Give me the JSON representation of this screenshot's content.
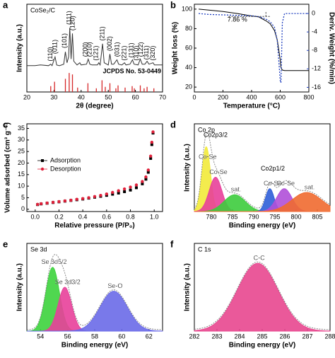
{
  "chart_data": [
    {
      "type": "line",
      "label": "a",
      "title": "CoSe₂/C",
      "xlabel": "2θ (degree)",
      "ylabel": "Intensity (a.u.)",
      "xlim": [
        20,
        70
      ],
      "xticks": [
        20,
        30,
        40,
        50,
        60,
        70
      ],
      "ylim": [
        0,
        120
      ],
      "color": "#333333",
      "x": [
        20,
        23,
        25,
        28,
        28.8,
        29.3,
        30.4,
        31,
        32,
        33.6,
        34.2,
        34.8,
        35.4,
        35.8,
        36.3,
        36.8,
        37.3,
        38.5,
        39.5,
        40,
        42,
        42.6,
        43.2,
        44,
        46,
        46.5,
        47,
        47.9,
        48.5,
        50,
        50.6,
        51.2,
        52,
        53.2,
        53.8,
        55,
        56,
        56.5,
        58,
        58.9,
        59.5,
        61,
        61.8,
        62.5,
        63.5,
        64.3,
        65,
        66.5,
        67,
        70
      ],
      "values": [
        36,
        36,
        37,
        36,
        38,
        36,
        48,
        37,
        36,
        38,
        55,
        40,
        48,
        88,
        45,
        80,
        42,
        37,
        40,
        37,
        38,
        45,
        38,
        37,
        37,
        40,
        37,
        66,
        40,
        37,
        52,
        38,
        38,
        44,
        38,
        37,
        40,
        37,
        38,
        44,
        38,
        37,
        45,
        38,
        38,
        42,
        38,
        40,
        37,
        37
      ],
      "reference": {
        "x": [
          28.8,
          30.2,
          34.2,
          35.6,
          36.8,
          38.7,
          42.5,
          45.6,
          47.7,
          48.9,
          50.6,
          52.8,
          53.6,
          56.2,
          58.8,
          59.6,
          61.8,
          63.2,
          64.3,
          66.8
        ],
        "values": [
          8,
          14,
          18,
          26,
          24,
          6,
          12,
          5,
          16,
          7,
          12,
          5,
          9,
          6,
          8,
          5,
          9,
          5,
          7,
          5
        ],
        "color": "#d62728"
      },
      "reference_label": "JCPDS No. 53-0449",
      "annotations": [
        {
          "text": "(110)",
          "x": 28.8,
          "y": 42
        },
        {
          "text": "(011)",
          "x": 30.4,
          "y": 52
        },
        {
          "text": "(101)",
          "x": 34.0,
          "y": 60
        },
        {
          "text": "(111)",
          "x": 35.6,
          "y": 92
        },
        {
          "text": "(120)",
          "x": 37.0,
          "y": 84
        },
        {
          "text": "(200)",
          "x": 41.6,
          "y": 48
        },
        {
          "text": "(210)",
          "x": 43.2,
          "y": 48
        },
        {
          "text": "(121)",
          "x": 45.6,
          "y": 43
        },
        {
          "text": "(211)",
          "x": 47.9,
          "y": 70
        },
        {
          "text": "(002)",
          "x": 50.6,
          "y": 56
        },
        {
          "text": "(031)",
          "x": 53.4,
          "y": 48
        },
        {
          "text": "(221)",
          "x": 56.0,
          "y": 43
        },
        {
          "text": "(131)",
          "x": 58.6,
          "y": 47
        },
        {
          "text": "(310)",
          "x": 60.4,
          "y": 43
        },
        {
          "text": "(122)",
          "x": 62.1,
          "y": 48
        },
        {
          "text": "(311)",
          "x": 64.2,
          "y": 44
        },
        {
          "text": "(320)",
          "x": 66.5,
          "y": 43
        }
      ]
    },
    {
      "type": "line",
      "label": "b",
      "xlabel": "Temperature (°C)",
      "ylabel": "Weight loss (%)",
      "y2label": "Deriv. Weight (%/min)",
      "xlim": [
        0,
        800
      ],
      "xticks": [
        0,
        200,
        400,
        600,
        800
      ],
      "ylim": [
        15,
        105
      ],
      "yticks": [
        20,
        40,
        60,
        80,
        100
      ],
      "y2lim": [
        -17,
        2
      ],
      "y2ticks": [
        0,
        -4,
        -8,
        -12,
        -16
      ],
      "x": [
        30,
        100,
        200,
        300,
        400,
        450,
        500,
        530,
        560,
        580,
        600,
        605,
        615,
        630,
        700,
        800
      ],
      "series": [
        {
          "color": "#000000",
          "style": "solid",
          "values": [
            100,
            99,
            97.5,
            95.5,
            93,
            92,
            88,
            85,
            78,
            68,
            48,
            40,
            37.5,
            37,
            37,
            37
          ]
        },
        {
          "color": "#1f3fbf",
          "style": "dotted",
          "axis": "y2",
          "values": [
            0,
            -0.2,
            -0.3,
            -0.4,
            -0.5,
            -0.7,
            -1.2,
            -1.8,
            -3,
            -6,
            -14.5,
            -15,
            -2,
            0,
            0,
            0
          ]
        }
      ],
      "annotations": [
        {
          "text": "7.86 %",
          "x": 300,
          "y": 89
        }
      ]
    },
    {
      "type": "scatter",
      "label": "c",
      "xlabel": "Relative pressure (P/P₀)",
      "ylabel": "Volume adsorbed (cm³ g⁻¹)",
      "xlim": [
        -0.07,
        1.07
      ],
      "xticks": [
        {
          "value": 0,
          "label": "0.0"
        },
        {
          "value": 0.2,
          "label": "0.2"
        },
        {
          "value": 0.4,
          "label": "0.4"
        },
        {
          "value": 0.6,
          "label": "0.6"
        },
        {
          "value": 0.8,
          "label": "0.8"
        },
        {
          "value": 1,
          "label": "1.0"
        }
      ],
      "ylim": [
        -1,
        37
      ],
      "yticks": [
        0,
        5,
        10,
        15,
        20,
        25,
        30,
        35
      ],
      "legend": "center left",
      "x": [
        0.02,
        0.05,
        0.1,
        0.15,
        0.2,
        0.25,
        0.3,
        0.35,
        0.4,
        0.45,
        0.5,
        0.55,
        0.6,
        0.65,
        0.7,
        0.75,
        0.8,
        0.85,
        0.9,
        0.93,
        0.95,
        0.97,
        0.98,
        0.99
      ],
      "series": [
        {
          "name": "Adsorption",
          "color": "#000000",
          "marker": "square",
          "values": [
            2,
            2.3,
            2.6,
            2.9,
            3.2,
            3.5,
            3.8,
            4.1,
            4.4,
            4.8,
            5.2,
            5.6,
            6,
            6.5,
            7,
            7.6,
            8.3,
            9.3,
            11,
            13,
            16,
            22,
            28,
            33
          ]
        },
        {
          "name": "Desorption",
          "color": "#e0203a",
          "marker": "circle",
          "values": [
            2.1,
            2.4,
            2.7,
            3,
            3.3,
            3.6,
            3.9,
            4.3,
            4.6,
            5,
            5.5,
            6,
            6.6,
            7.3,
            8,
            8.8,
            9.6,
            10.5,
            12,
            14,
            17,
            23,
            29,
            33.5
          ]
        }
      ]
    },
    {
      "type": "area",
      "label": "d",
      "title": "Co 2p",
      "xlabel": "Binding energy (eV)",
      "ylabel": "Intensity (a.u.)",
      "xlim": [
        776,
        808
      ],
      "xticks": [
        780,
        785,
        790,
        795,
        800,
        805
      ],
      "ylim": [
        0,
        115
      ],
      "series": [
        {
          "name": "Co-Se",
          "color": "#f2ea3a",
          "center": 778.8,
          "height": 85,
          "width": 1.0
        },
        {
          "name": "Co-Se",
          "color": "#e8409a",
          "center": 781,
          "height": 45,
          "width": 1.5
        },
        {
          "name": "sat.",
          "color": "#3dcc3d",
          "center": 785.5,
          "height": 22,
          "width": 2.5
        },
        {
          "name": "Co-Se",
          "color": "#2f5fd8",
          "center": 793.8,
          "height": 30,
          "width": 1.0
        },
        {
          "name": "Co-Se",
          "color": "#b050d8",
          "center": 797.2,
          "height": 30,
          "width": 1.8
        },
        {
          "name": "sat.",
          "color": "#f06a30",
          "center": 802.5,
          "height": 25,
          "width": 3.5
        }
      ],
      "annotations": [
        {
          "text": "Co2p3/2",
          "x": 781,
          "y": 100
        },
        {
          "text": "Co2p1/2",
          "x": 794.5,
          "y": 56
        }
      ]
    },
    {
      "type": "area",
      "label": "e",
      "title": "Se 3d",
      "xlabel": "Binding energy (eV)",
      "ylabel": "Intensity (a.u.)",
      "xlim": [
        53,
        63
      ],
      "xticks": [
        54,
        56,
        58,
        60,
        62
      ],
      "ylim": [
        0,
        110
      ],
      "series": [
        {
          "name": "Se 3d5/2",
          "color": "#3dd33d",
          "center": 54.9,
          "height": 80,
          "width": 0.5
        },
        {
          "name": "Se 3d3/2",
          "color": "#e8409a",
          "center": 55.8,
          "height": 55,
          "width": 0.5
        },
        {
          "name": "Se-O",
          "color": "#6a6ae8",
          "center": 59.4,
          "height": 50,
          "width": 1.0
        }
      ]
    },
    {
      "type": "area",
      "label": "f",
      "title": "C 1s",
      "xlabel": "Binding energy (eV)",
      "ylabel": "Intensity (a.u.)",
      "xlim": [
        282,
        288
      ],
      "xticks": [
        282,
        283,
        284,
        285,
        286,
        287,
        288
      ],
      "ylim": [
        0,
        110
      ],
      "series": [
        {
          "name": "C-C",
          "color": "#e8478f",
          "center": 284.8,
          "height": 85,
          "width": 0.9
        }
      ]
    }
  ]
}
